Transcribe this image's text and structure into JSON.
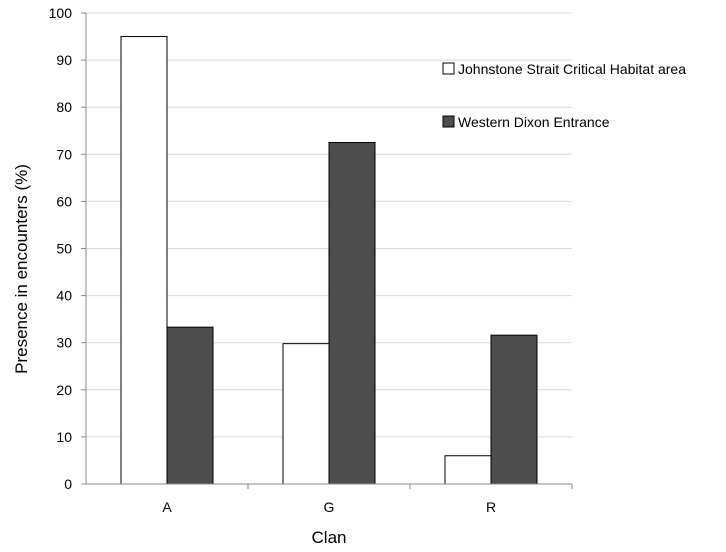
{
  "chart_data": {
    "type": "bar",
    "categories": [
      "A",
      "G",
      "R"
    ],
    "series": [
      {
        "name": "Johnstone Strait Critical Habitat area",
        "values": [
          95,
          29.8,
          6
        ],
        "color": "#ffffff"
      },
      {
        "name": "Western Dixon Entrance",
        "values": [
          33.3,
          72.5,
          31.6
        ],
        "color": "#4d4d4d"
      }
    ],
    "xlabel": "Clan",
    "ylabel": "Presence in encounters (%)",
    "ylim": [
      0,
      100
    ],
    "yticks": [
      0,
      10,
      20,
      30,
      40,
      50,
      60,
      70,
      80,
      90,
      100
    ],
    "grid": true,
    "legend_position": "top-right"
  }
}
